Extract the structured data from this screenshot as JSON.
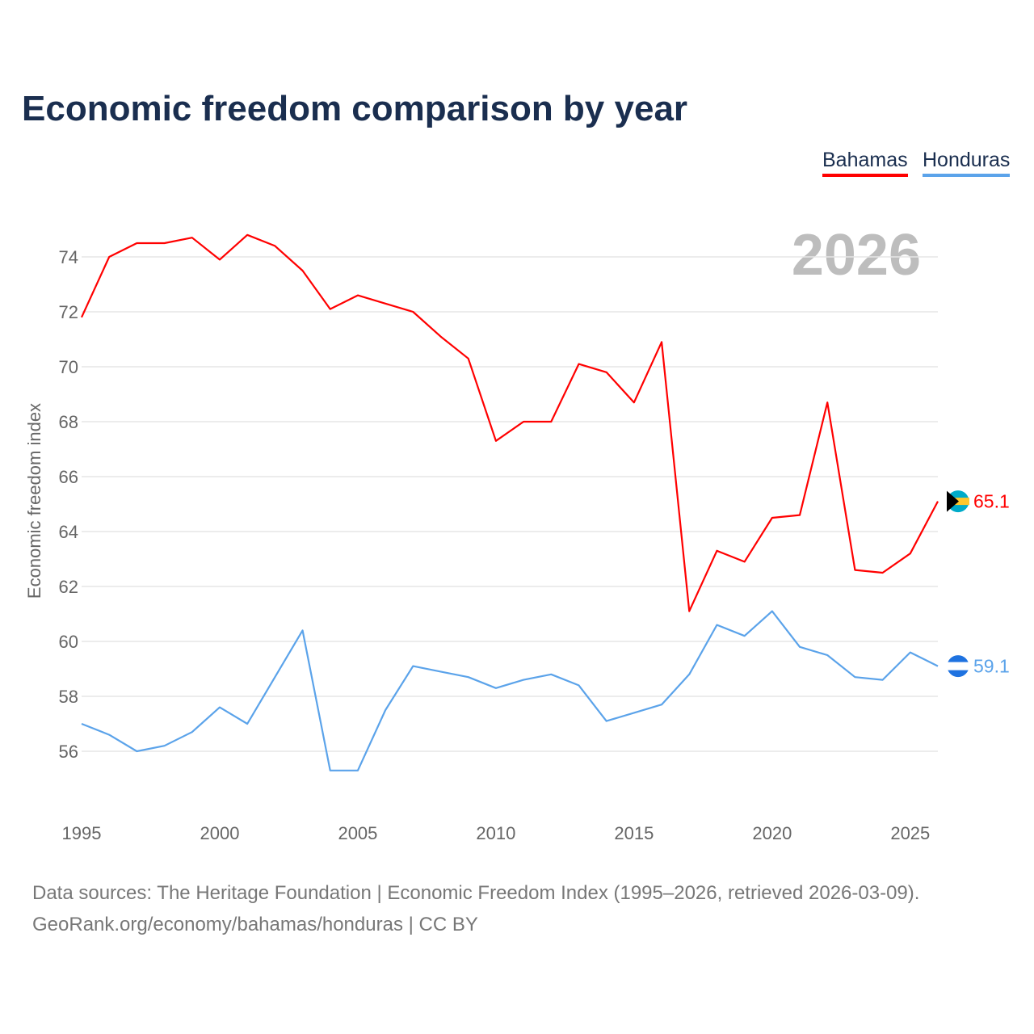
{
  "title": "Economic freedom comparison by year",
  "legend": [
    "Bahamas",
    "Honduras"
  ],
  "year_watermark": "2026",
  "footer": {
    "line1": "Data sources: The Heritage Foundation | Economic Freedom Index (1995–2026, retrieved 2026-03-09).",
    "line2": "GeoRank.org/economy/bahamas/honduras | CC BY"
  },
  "chart_data": {
    "type": "line",
    "title": "Economic freedom comparison by year",
    "xlabel": "",
    "ylabel": "Economic freedom index",
    "x": [
      1995,
      1996,
      1997,
      1998,
      1999,
      2000,
      2001,
      2002,
      2003,
      2004,
      2005,
      2006,
      2007,
      2008,
      2009,
      2010,
      2011,
      2012,
      2013,
      2014,
      2015,
      2016,
      2017,
      2018,
      2019,
      2020,
      2021,
      2022,
      2023,
      2024,
      2025,
      2026
    ],
    "xticks": [
      1995,
      2000,
      2005,
      2010,
      2015,
      2020,
      2025
    ],
    "yticks": [
      56,
      58,
      60,
      62,
      64,
      66,
      68,
      70,
      72,
      74
    ],
    "xlim": [
      1995,
      2026
    ],
    "ylim": [
      53.5,
      75.5
    ],
    "grid": true,
    "legend_position": "top-right",
    "series": [
      {
        "name": "Bahamas",
        "color": "#ff0000",
        "end_label": "65.1",
        "values": [
          71.8,
          74.0,
          74.5,
          74.5,
          74.7,
          73.9,
          74.8,
          74.4,
          73.5,
          72.1,
          72.6,
          72.3,
          72.0,
          71.1,
          70.3,
          67.3,
          68.0,
          68.0,
          70.1,
          69.8,
          68.7,
          70.9,
          61.1,
          63.3,
          62.9,
          64.5,
          64.6,
          68.7,
          62.6,
          62.5,
          63.2,
          65.1
        ]
      },
      {
        "name": "Honduras",
        "color": "#5ba3ea",
        "end_label": "59.1",
        "values": [
          57.0,
          56.6,
          56.0,
          56.2,
          56.7,
          57.6,
          57.0,
          58.7,
          60.4,
          55.3,
          55.3,
          57.5,
          59.1,
          58.9,
          58.7,
          58.3,
          58.6,
          58.8,
          58.4,
          57.1,
          57.4,
          57.7,
          58.8,
          60.6,
          60.2,
          61.1,
          59.8,
          59.5,
          58.7,
          58.6,
          59.6,
          59.1
        ]
      }
    ]
  }
}
